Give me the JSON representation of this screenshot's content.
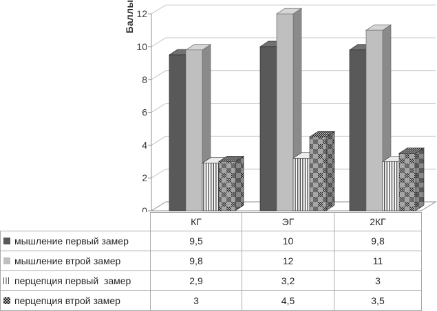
{
  "chart_data": {
    "type": "bar",
    "variant": "3d-clustered",
    "title": "",
    "xlabel": "",
    "ylabel": "Баллы",
    "categories": [
      "КГ",
      "ЭГ",
      "2КГ"
    ],
    "series": [
      {
        "name": "мышление первый замер",
        "style": "solid-dark",
        "values": [
          9.5,
          10,
          9.8
        ]
      },
      {
        "name": "мышление втрой замер",
        "style": "solid-light",
        "values": [
          9.8,
          12,
          11
        ]
      },
      {
        "name": "перцепция первый  замер",
        "style": "vertical-stripes",
        "values": [
          2.9,
          3.2,
          3
        ]
      },
      {
        "name": "перцепция втрой замер",
        "style": "checkerboard",
        "values": [
          3,
          4.5,
          3.5
        ]
      }
    ],
    "y_ticks": [
      0,
      2,
      4,
      6,
      8,
      10,
      12
    ],
    "ylim": [
      0,
      12
    ],
    "grid": true,
    "legend_position": "table-below",
    "colors": {
      "dark_front": "#595959",
      "dark_side": "#3b3b3b",
      "dark_top": "#717171",
      "light_front": "#bfbfbf",
      "light_side": "#8a8a8a",
      "light_top": "#d6d6d6",
      "stripe_fg": "#4a4a4a",
      "stripe_bg": "#fdfdfd",
      "check_dark": "#222222",
      "check_base": "#a6a6a6",
      "check_mid": "#b5b5b5",
      "grid_line": "#c4c4c4",
      "axis_line": "#8f8f8f",
      "tick_text": "#3a3a3a",
      "table_border": "#a8a8a8"
    }
  },
  "table": {
    "values_display": [
      [
        "9,5",
        "10",
        "9,8"
      ],
      [
        "9,8",
        "12",
        "11"
      ],
      [
        "2,9",
        "3,2",
        "3"
      ],
      [
        "3",
        "4,5",
        "3,5"
      ]
    ]
  }
}
